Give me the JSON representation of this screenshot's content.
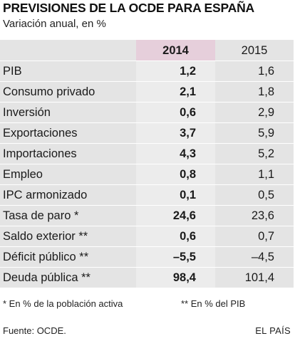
{
  "header": {
    "title": "PREVISIONES DE LA OCDE PARA ESPAÑA",
    "subtitle": "Variación anual, en %"
  },
  "table": {
    "columns": [
      "",
      "2014",
      "2015"
    ],
    "rows": [
      {
        "label": "PIB",
        "v2014": "1,2",
        "v2015": "1,6"
      },
      {
        "label": "Consumo privado",
        "v2014": "2,1",
        "v2015": "1,8"
      },
      {
        "label": "Inversión",
        "v2014": "0,6",
        "v2015": "2,9"
      },
      {
        "label": "Exportaciones",
        "v2014": "3,7",
        "v2015": "5,9"
      },
      {
        "label": "Importaciones",
        "v2014": "4,3",
        "v2015": "5,2"
      },
      {
        "label": "Empleo",
        "v2014": "0,8",
        "v2015": "1,1"
      },
      {
        "label": "IPC armonizado",
        "v2014": "0,1",
        "v2015": "0,5"
      },
      {
        "label": "Tasa de paro *",
        "v2014": "24,6",
        "v2015": "23,6"
      },
      {
        "label": "Saldo exterior **",
        "v2014": "0,6",
        "v2015": "0,7"
      },
      {
        "label": "Déficit público **",
        "v2014": "–5,5",
        "v2015": "–4,5"
      },
      {
        "label": "Deuda pública **",
        "v2014": "98,4",
        "v2015": "101,4"
      }
    ]
  },
  "footnotes": {
    "note1": "* En % de la población activa",
    "note2": "** En % del PIB"
  },
  "footer": {
    "source": "Fuente: OCDE.",
    "brand": "EL PAÍS"
  },
  "colors": {
    "highlight_column": "#e6cfdb",
    "row_background": "#e4e4e4"
  }
}
